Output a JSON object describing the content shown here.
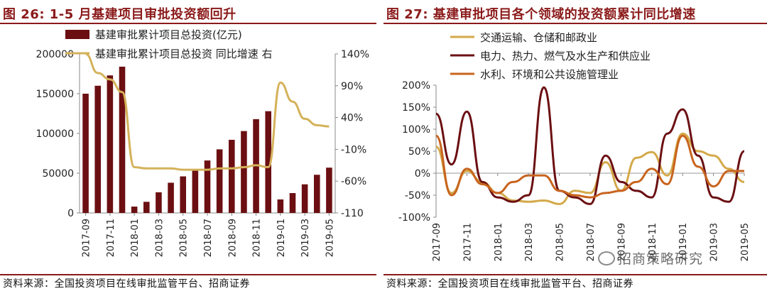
{
  "left": {
    "title": "图 26:  1-5 月基建项目审批投资额回升",
    "source": "资料来源：全国投资项目在线审批监管平台、招商证券"
  },
  "right": {
    "title": "图 27:  基建审批项目各个领域的投资额累计同比增速",
    "source": "资料来源：全国投资项目在线审批监管平台、招商证券"
  },
  "watermark": "招商策略研究",
  "chart_data": [
    {
      "type": "bar",
      "legend_position": "top-left",
      "categories": [
        "2017-09",
        "2017-10",
        "2017-11",
        "2017-12",
        "2018-01",
        "2018-02",
        "2018-03",
        "2018-04",
        "2018-05",
        "2018-06",
        "2018-07",
        "2018-08",
        "2018-09",
        "2018-10",
        "2018-11",
        "2018-12",
        "2019-01",
        "2019-02",
        "2019-03",
        "2019-04",
        "2019-05"
      ],
      "x_tick_labels": [
        "2017-09",
        "2017-11",
        "2018-01",
        "2018-03",
        "2018-05",
        "2018-07",
        "2018-09",
        "2018-11",
        "2019-01",
        "2019-03",
        "2019-05"
      ],
      "series": [
        {
          "name": "基建审批累计项目总投资(亿元)",
          "type": "bar",
          "axis": "left",
          "color": "#6b0f12",
          "values": [
            150000,
            160000,
            173000,
            184000,
            8000,
            14000,
            26000,
            38000,
            46000,
            55000,
            66000,
            80000,
            92000,
            103000,
            118000,
            128000,
            17000,
            25000,
            36000,
            48000,
            57000
          ]
        },
        {
          "name": "基建审批累计项目总投资 同比增速 右",
          "type": "line",
          "axis": "right",
          "color": "#d4b25a",
          "values": [
            140,
            110,
            100,
            80,
            -38,
            -40,
            -40,
            -40,
            -42,
            -42,
            -42,
            -40,
            -40,
            -38,
            -35,
            -38,
            95,
            65,
            38,
            28,
            26
          ]
        }
      ],
      "y_left": {
        "ylim": [
          0,
          200000
        ],
        "ticks": [
          "0",
          "50000",
          "100000",
          "150000",
          "200000"
        ]
      },
      "y_right": {
        "ylim": [
          -110,
          140
        ],
        "ticks": [
          "140%",
          "90%",
          "40%",
          "-10%",
          "-60%",
          "-110"
        ]
      }
    },
    {
      "type": "line",
      "legend_position": "top-left",
      "categories": [
        "2017-09",
        "2017-10",
        "2017-11",
        "2017-12",
        "2018-01",
        "2018-02",
        "2018-03",
        "2018-04",
        "2018-05",
        "2018-06",
        "2018-07",
        "2018-08",
        "2018-09",
        "2018-10",
        "2018-11",
        "2018-12",
        "2019-01",
        "2019-02",
        "2019-03",
        "2019-04",
        "2019-05"
      ],
      "x_tick_labels": [
        "2017-09",
        "2017-11",
        "2018-01",
        "2018-03",
        "2018-05",
        "2018-07",
        "2018-09",
        "2018-11",
        "2019-01",
        "2019-03",
        "2019-05"
      ],
      "series": [
        {
          "name": "交通运输、仓储和邮政业",
          "color": "#d4a94a",
          "values": [
            60,
            -45,
            5,
            -20,
            -45,
            -62,
            -65,
            -62,
            -70,
            -40,
            -45,
            25,
            -40,
            35,
            48,
            -5,
            90,
            50,
            40,
            10,
            -20
          ]
        },
        {
          "name": "电力、热力、燃气及水生产和供应业",
          "color": "#6b0f12",
          "values": [
            135,
            20,
            140,
            -20,
            -55,
            -65,
            -50,
            195,
            -40,
            -55,
            -70,
            40,
            -20,
            -40,
            -55,
            90,
            145,
            40,
            -55,
            -65,
            50
          ]
        },
        {
          "name": "水利、环境和公共设施管理业",
          "color": "#c8641e",
          "values": [
            85,
            -50,
            10,
            -25,
            -45,
            -20,
            -5,
            -5,
            -40,
            -50,
            -55,
            -45,
            -40,
            -20,
            10,
            -25,
            85,
            15,
            -30,
            5,
            5
          ]
        }
      ],
      "y": {
        "ylim": [
          -100,
          200
        ],
        "ticks": [
          "200%",
          "150%",
          "100%",
          "50%",
          "0%",
          "-50%",
          "-100%"
        ]
      }
    }
  ]
}
